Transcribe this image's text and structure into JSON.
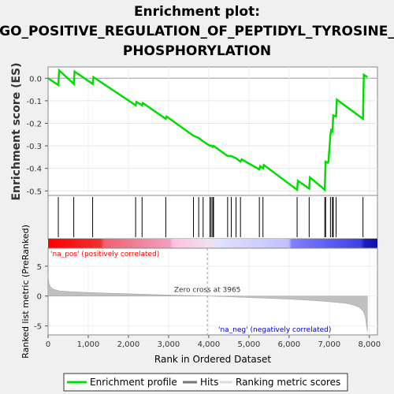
{
  "title_lines": [
    "Enrichment plot:",
    "GO_POSITIVE_REGULATION_OF_PEPTIDYL_TYROSINE_",
    "PHOSPHORYLATION"
  ],
  "colors": {
    "enrichment": "#00dd00",
    "hits": "#000000",
    "metric_fill": "#c0c0c0",
    "pos_label": "#ff0000",
    "neg_label": "#0000cc"
  },
  "chart_data": [
    {
      "type": "line",
      "name": "enrichment-plot",
      "ylabel": "Enrichment score (ES)",
      "ylim": [
        -0.52,
        0.05
      ],
      "yticks": [
        0.0,
        -0.1,
        -0.2,
        -0.3,
        -0.4,
        -0.5
      ],
      "xlim": [
        0,
        8200
      ],
      "grid": true,
      "series": [
        {
          "name": "Enrichment profile",
          "x": [
            0,
            255,
            275,
            640,
            660,
            1110,
            1130,
            2180,
            2200,
            2340,
            2360,
            2930,
            2950,
            3620,
            3750,
            3860,
            4030,
            4060,
            4100,
            4120,
            4470,
            4490,
            4560,
            4680,
            4790,
            4820,
            5260,
            5280,
            5350,
            5370,
            6200,
            6220,
            6500,
            6520,
            6890,
            6900,
            6910,
            6960,
            6980,
            7030,
            7050,
            7080,
            7100,
            7170,
            7190,
            7840,
            7860,
            7950
          ],
          "y": [
            0.0,
            -0.03,
            0.035,
            -0.025,
            0.03,
            -0.025,
            0.005,
            -0.12,
            -0.105,
            -0.12,
            -0.11,
            -0.18,
            -0.17,
            -0.255,
            -0.265,
            -0.28,
            -0.3,
            -0.298,
            -0.305,
            -0.3,
            -0.345,
            -0.345,
            -0.345,
            -0.355,
            -0.37,
            -0.36,
            -0.405,
            -0.39,
            -0.4,
            -0.385,
            -0.495,
            -0.455,
            -0.49,
            -0.44,
            -0.495,
            -0.42,
            -0.37,
            -0.375,
            -0.37,
            -0.25,
            -0.23,
            -0.235,
            -0.165,
            -0.17,
            -0.095,
            -0.18,
            0.015,
            0.005
          ]
        }
      ]
    },
    {
      "type": "hits",
      "name": "hits-panel",
      "hits": [
        255,
        640,
        1110,
        2180,
        2340,
        2930,
        3620,
        3750,
        3860,
        4030,
        4060,
        4100,
        4120,
        4470,
        4560,
        4680,
        4790,
        5260,
        5350,
        6200,
        6500,
        6890,
        6910,
        7030,
        7080,
        7100,
        7170,
        7840
      ]
    },
    {
      "type": "area",
      "name": "ranked-metric",
      "xlabel": "Rank in Ordered Dataset",
      "ylabel": "Ranked list metric (PreRanked)",
      "ylim": [
        -6.5,
        8
      ],
      "yticks": [
        5,
        0,
        -5
      ],
      "xticks": [
        0,
        1000,
        2000,
        3000,
        4000,
        5000,
        6000,
        7000,
        8000
      ],
      "xtick_labels": [
        "0",
        "1,000",
        "2,000",
        "3,000",
        "4,000",
        "5,000",
        "6,000",
        "7,000",
        "8,000"
      ],
      "x": [
        0,
        20,
        60,
        150,
        300,
        600,
        1000,
        1500,
        2000,
        2500,
        3000,
        3500,
        3965,
        4500,
        5000,
        5500,
        6000,
        6500,
        7000,
        7400,
        7600,
        7750,
        7850,
        7900,
        7930,
        7950
      ],
      "values": [
        3.6,
        2.2,
        1.5,
        1.1,
        0.85,
        0.72,
        0.6,
        0.48,
        0.38,
        0.28,
        0.18,
        0.08,
        0.0,
        -0.12,
        -0.25,
        -0.38,
        -0.52,
        -0.7,
        -0.95,
        -1.2,
        -1.5,
        -1.9,
        -2.6,
        -3.5,
        -5.2,
        -5.9
      ],
      "zero_cross_label": "Zero cross at 3965",
      "zero_cross": 3965,
      "pos_label": "'na_pos' (positively correlated)",
      "neg_label": "'na_neg' (negatively correlated)"
    }
  ],
  "legend": {
    "items": [
      {
        "label": "Enrichment profile"
      },
      {
        "label": "Hits"
      },
      {
        "label": "Ranking metric scores"
      }
    ]
  }
}
